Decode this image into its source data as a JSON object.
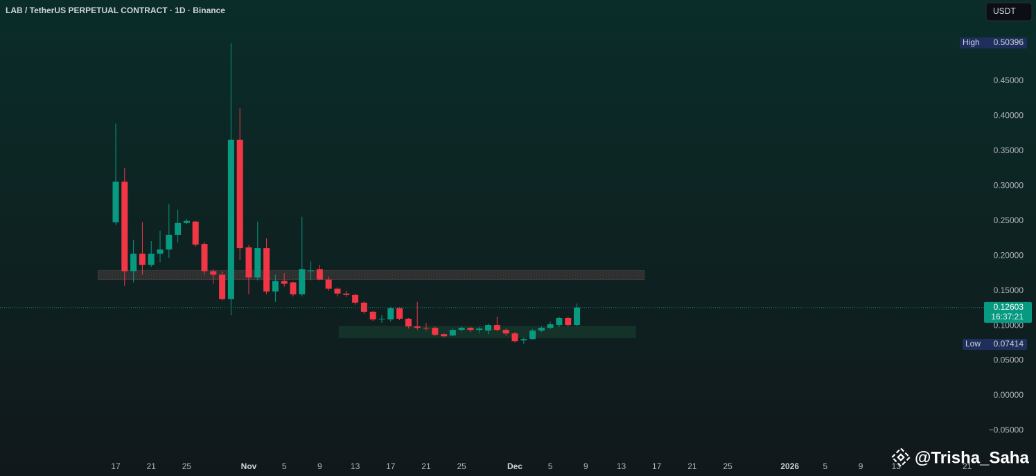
{
  "chart_data": {
    "type": "candlestick",
    "title": "LAB / TetherUS PERPETUAL CONTRACT · 1D · Binance",
    "currency": "USDT",
    "high_label": "High",
    "low_label": "Low",
    "countdown": "16:37:21",
    "watermark": "@Trisha_Saha",
    "up_color": "#089981",
    "down_color": "#f23645",
    "x": [
      0,
      1,
      2,
      3,
      4,
      5,
      6,
      7,
      8,
      9,
      10,
      11,
      12,
      13,
      14,
      15,
      16,
      17,
      18,
      19,
      20,
      21,
      22,
      23,
      24,
      25,
      26,
      27,
      28,
      29,
      30,
      31,
      32,
      33,
      34,
      35,
      36,
      37,
      38,
      39,
      40,
      41,
      42,
      43,
      44,
      45,
      46,
      47,
      48,
      49,
      50,
      51,
      52
    ],
    "open": [
      0.248,
      0.306,
      0.178,
      0.203,
      0.187,
      0.203,
      0.209,
      0.23,
      0.247,
      0.249,
      0.217,
      0.178,
      0.173,
      0.138,
      0.366,
      0.212,
      0.169,
      0.211,
      0.149,
      0.164,
      0.162,
      0.145,
      0.178,
      0.181,
      0.166,
      0.153,
      0.146,
      0.144,
      0.133,
      0.12,
      0.109,
      0.109,
      0.125,
      0.11,
      0.099,
      0.097,
      0.097,
      0.088,
      0.086,
      0.094,
      0.097,
      0.094,
      0.093,
      0.101,
      0.094,
      0.089,
      0.079,
      0.081,
      0.093,
      0.097,
      0.101,
      0.111,
      0.101
    ],
    "high": [
      0.389,
      0.326,
      0.223,
      0.248,
      0.221,
      0.236,
      0.274,
      0.266,
      0.253,
      0.25,
      0.22,
      0.181,
      0.178,
      0.50396,
      0.411,
      0.215,
      0.249,
      0.225,
      0.173,
      0.175,
      0.163,
      0.256,
      0.192,
      0.187,
      0.17,
      0.155,
      0.15,
      0.146,
      0.135,
      0.121,
      0.115,
      0.127,
      0.126,
      0.111,
      0.134,
      0.104,
      0.099,
      0.089,
      0.096,
      0.099,
      0.098,
      0.098,
      0.103,
      0.113,
      0.096,
      0.091,
      0.083,
      0.095,
      0.099,
      0.106,
      0.113,
      0.113,
      0.132
    ],
    "low": [
      0.244,
      0.157,
      0.162,
      0.173,
      0.184,
      0.191,
      0.197,
      0.219,
      0.245,
      0.213,
      0.173,
      0.16,
      0.136,
      0.115,
      0.194,
      0.145,
      0.165,
      0.145,
      0.134,
      0.156,
      0.142,
      0.142,
      0.165,
      0.165,
      0.15,
      0.142,
      0.141,
      0.13,
      0.117,
      0.107,
      0.104,
      0.106,
      0.108,
      0.096,
      0.094,
      0.093,
      0.085,
      0.083,
      0.085,
      0.092,
      0.091,
      0.09,
      0.088,
      0.092,
      0.086,
      0.076,
      0.07414,
      0.08,
      0.091,
      0.095,
      0.098,
      0.099,
      0.099
    ],
    "close": [
      0.306,
      0.178,
      0.203,
      0.187,
      0.203,
      0.209,
      0.23,
      0.247,
      0.25,
      0.216,
      0.178,
      0.173,
      0.138,
      0.366,
      0.211,
      0.169,
      0.211,
      0.149,
      0.164,
      0.16,
      0.145,
      0.181,
      0.179,
      0.166,
      0.153,
      0.146,
      0.144,
      0.133,
      0.12,
      0.109,
      0.11,
      0.125,
      0.11,
      0.099,
      0.097,
      0.096,
      0.087,
      0.085,
      0.094,
      0.097,
      0.094,
      0.096,
      0.101,
      0.094,
      0.089,
      0.078,
      0.081,
      0.093,
      0.097,
      0.102,
      0.111,
      0.101,
      0.12603
    ],
    "zones": [
      {
        "low": 0.166,
        "high": 0.179,
        "start": -2,
        "end": 59.6,
        "color": "#3a3a3a"
      },
      {
        "low": 0.083,
        "high": 0.099,
        "start": 25.2,
        "end": 58.6,
        "color": "#16362c"
      }
    ],
    "ylim": [
      -0.0882,
      0.5659
    ],
    "yticks": [
      {
        "value": -0.05,
        "label": "−0.05000"
      },
      {
        "value": 0,
        "label": "0.00000"
      },
      {
        "value": 0.05,
        "label": "0.05000"
      },
      {
        "value": 0.1,
        "label": "0.10000"
      },
      {
        "value": 0.15,
        "label": "0.15000"
      },
      {
        "value": 0.2,
        "label": "0.20000"
      },
      {
        "value": 0.25,
        "label": "0.25000"
      },
      {
        "value": 0.3,
        "label": "0.30000"
      },
      {
        "value": 0.35,
        "label": "0.35000"
      },
      {
        "value": 0.4,
        "label": "0.40000"
      },
      {
        "value": 0.45,
        "label": "0.45000"
      }
    ],
    "xlim": [
      -13.05,
      97.9
    ],
    "xticks": [
      {
        "value": 0,
        "label": "17"
      },
      {
        "value": 4,
        "label": "21"
      },
      {
        "value": 8,
        "label": "25"
      },
      {
        "value": 15,
        "label": "Nov"
      },
      {
        "value": 19,
        "label": "5"
      },
      {
        "value": 23,
        "label": "9"
      },
      {
        "value": 27,
        "label": "13"
      },
      {
        "value": 31,
        "label": "17"
      },
      {
        "value": 35,
        "label": "21"
      },
      {
        "value": 39,
        "label": "25"
      },
      {
        "value": 45,
        "label": "Dec"
      },
      {
        "value": 49,
        "label": "5"
      },
      {
        "value": 53,
        "label": "9"
      },
      {
        "value": 57,
        "label": "13"
      },
      {
        "value": 61,
        "label": "17"
      },
      {
        "value": 65,
        "label": "21"
      },
      {
        "value": 69,
        "label": "25"
      },
      {
        "value": 76,
        "label": "2026"
      },
      {
        "value": 80,
        "label": "5"
      },
      {
        "value": 84,
        "label": "9"
      },
      {
        "value": 88,
        "label": "13"
      },
      {
        "value": 96,
        "label": "21"
      }
    ],
    "grid": false
  }
}
